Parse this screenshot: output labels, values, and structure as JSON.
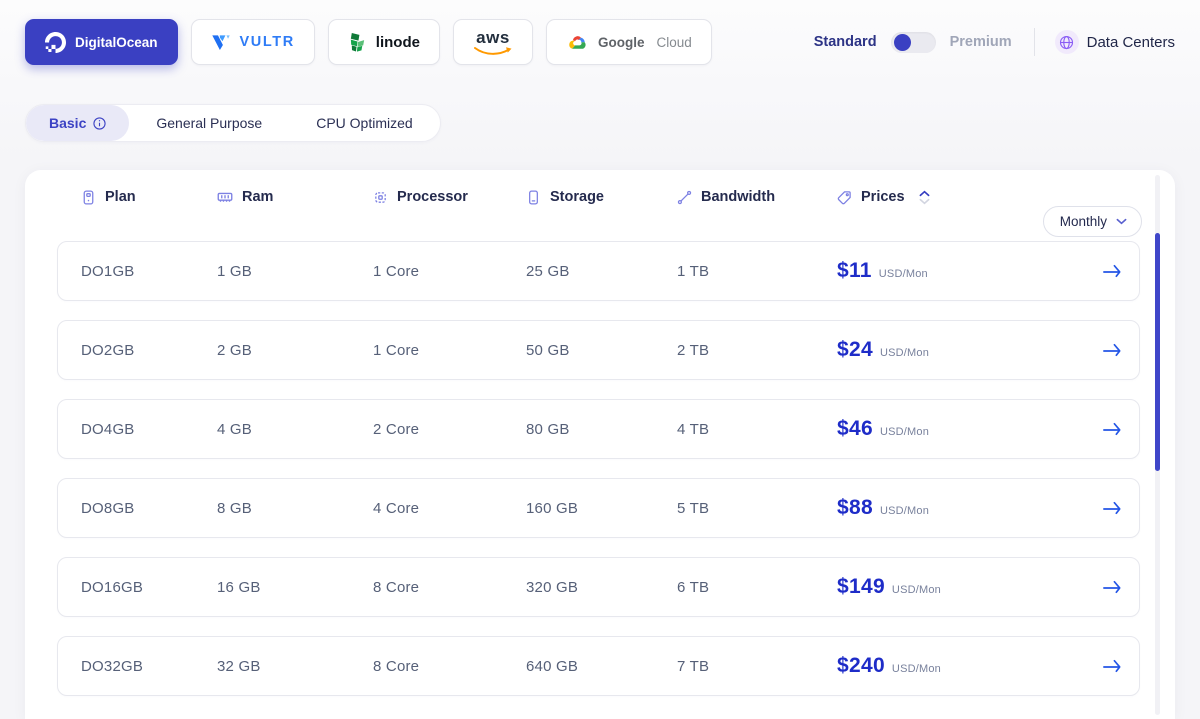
{
  "providers": [
    {
      "name": "digitalocean",
      "label": "DigitalOcean",
      "active": true
    },
    {
      "name": "vultr",
      "label": "VULTR",
      "active": false
    },
    {
      "name": "linode",
      "label": "linode",
      "active": false
    },
    {
      "name": "aws",
      "label": "aws",
      "active": false
    },
    {
      "name": "google-cloud",
      "label_primary": "Google",
      "label_secondary": "Cloud",
      "active": false
    }
  ],
  "plan_toggle": {
    "left_label": "Standard",
    "right_label": "Premium",
    "selected": "Standard"
  },
  "data_centers": {
    "label": "Data Centers",
    "icon": "globe-icon"
  },
  "category_tabs": [
    {
      "label": "Basic",
      "active": true,
      "info_icon": true
    },
    {
      "label": "General Purpose",
      "active": false
    },
    {
      "label": "CPU Optimized",
      "active": false
    }
  ],
  "table": {
    "columns": [
      {
        "label": "Plan",
        "icon": "server-icon"
      },
      {
        "label": "Ram",
        "icon": "ram-icon"
      },
      {
        "label": "Processor",
        "icon": "cpu-icon"
      },
      {
        "label": "Storage",
        "icon": "storage-icon"
      },
      {
        "label": "Bandwidth",
        "icon": "bandwidth-icon"
      },
      {
        "label": "Prices",
        "icon": "price-tag-icon",
        "sortable": true
      }
    ],
    "period_select": {
      "value": "Monthly"
    },
    "rows": [
      {
        "plan": "DO1GB",
        "ram": "1 GB",
        "processor": "1 Core",
        "storage": "25 GB",
        "bandwidth": "1 TB",
        "price": "$11",
        "price_unit": "USD/Mon"
      },
      {
        "plan": "DO2GB",
        "ram": "2 GB",
        "processor": "1 Core",
        "storage": "50 GB",
        "bandwidth": "2 TB",
        "price": "$24",
        "price_unit": "USD/Mon"
      },
      {
        "plan": "DO4GB",
        "ram": "4 GB",
        "processor": "2 Core",
        "storage": "80 GB",
        "bandwidth": "4 TB",
        "price": "$46",
        "price_unit": "USD/Mon"
      },
      {
        "plan": "DO8GB",
        "ram": "8 GB",
        "processor": "4 Core",
        "storage": "160 GB",
        "bandwidth": "5 TB",
        "price": "$88",
        "price_unit": "USD/Mon"
      },
      {
        "plan": "DO16GB",
        "ram": "16 GB",
        "processor": "8 Core",
        "storage": "320 GB",
        "bandwidth": "6 TB",
        "price": "$149",
        "price_unit": "USD/Mon"
      },
      {
        "plan": "DO32GB",
        "ram": "32 GB",
        "processor": "8 Core",
        "storage": "640 GB",
        "bandwidth": "7 TB",
        "price": "$240",
        "price_unit": "USD/Mon"
      }
    ]
  },
  "colors": {
    "accent_indigo": "#3a40c2",
    "price_blue": "#1e2cc8",
    "arrow_blue": "#2456e6",
    "active_tab_bg": "#e9e9f7",
    "header_icon_purple": "#7d81e3",
    "row_text": "#566078",
    "vultr_blue": "#2f7cf6",
    "aws_orange": "#ff9900",
    "globe_purple": "#8a5cf5",
    "scrollbar_thumb": "#3f46c9"
  }
}
